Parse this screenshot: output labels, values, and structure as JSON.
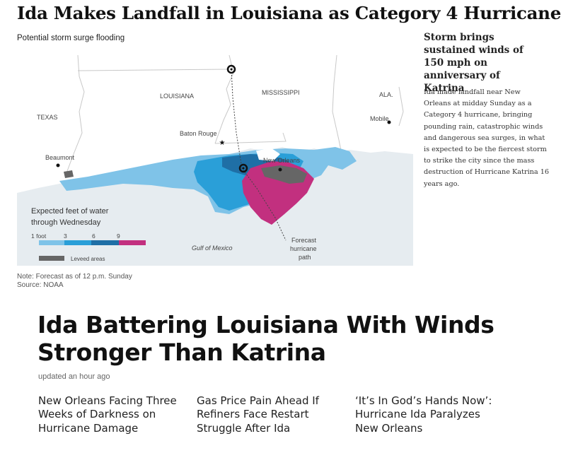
{
  "article": {
    "headline": "Ida Makes Landfall in Louisiana as Category 4 Hurricane",
    "map_caption": "Potential storm surge flooding",
    "note": "Note: Forecast as of 12 p.m. Sunday",
    "source": "Source: NOAA"
  },
  "map": {
    "labels": {
      "texas": "TEXAS",
      "louisiana": "LOUISIANA",
      "mississippi": "MISSISSIPPI",
      "alabama": "ALA.",
      "baton_rouge": "Baton Rouge",
      "new_orleans": "New Orleans",
      "beaumont": "Beaumont",
      "mobile": "Mobile",
      "gulf": "Gulf of Mexico",
      "forecast_1": "Forecast",
      "forecast_2": "hurricane",
      "forecast_3": "path"
    },
    "legend": {
      "title_1": "Expected feet of water",
      "title_2": "through Wednesday",
      "ticks": [
        "1 foot",
        "3",
        "6",
        "9"
      ],
      "leveed": "Leveed areas"
    },
    "colors": {
      "water": "#e6ecf0",
      "land": "#ffffff",
      "surge_low": "#7fc3e8",
      "surge_mid": "#2a9fd8",
      "surge_high": "#1f6fa6",
      "surge_extreme": "#c2307f",
      "leveed": "#666666"
    },
    "icons": [
      "hurricane-symbol-icon",
      "capital-star-icon"
    ]
  },
  "sidebar": {
    "headline": "Storm brings sustained winds of 150 mph on anniversary of Katrina",
    "body": "Ida made landfall near New Orleans at midday Sunday as a Category 4 hurricane, bringing pounding rain, catastrophic winds and dangerous sea surges, in what is expected to be the fiercest storm to strike the city since the mass destruction of Hurricane Katrina 16 years ago."
  },
  "bloomberg": {
    "headline": "Ida Battering Louisiana With Winds Stronger Than Katrina",
    "timestamp": "updated an hour ago",
    "stories": [
      "New Orleans Facing Three Weeks of Darkness on Hurricane Damage",
      "Gas Price Pain Ahead If Refiners Face Restart Struggle After Ida",
      "‘It’s In God’s Hands Now’: Hurricane Ida Paralyzes New Orleans"
    ]
  }
}
